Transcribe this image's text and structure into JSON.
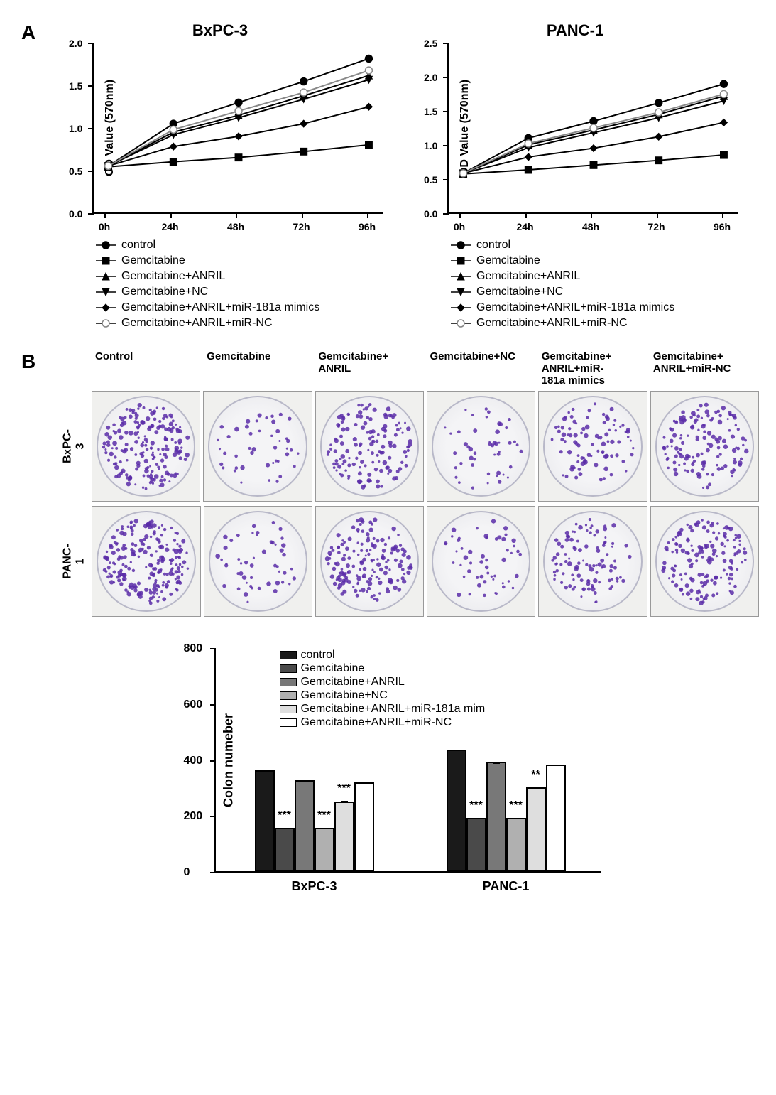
{
  "panelA": {
    "label": "A",
    "charts": [
      {
        "title": "BxPC-3",
        "ylabel": "OD Value (570nm)",
        "ymax": 2.0,
        "yticks": [
          0.0,
          0.5,
          1.0,
          1.5,
          2.0
        ],
        "xticks": [
          "0h",
          "24h",
          "48h",
          "72h",
          "96h"
        ],
        "series": [
          {
            "name": "control",
            "marker": "circle",
            "color": "#000000",
            "fill": "#000000",
            "y": [
              0.55,
              1.05,
              1.3,
              1.55,
              1.82
            ]
          },
          {
            "name": "Gemcitabine",
            "marker": "square",
            "color": "#000000",
            "fill": "#000000",
            "y": [
              0.54,
              0.6,
              0.65,
              0.72,
              0.8
            ]
          },
          {
            "name": "Gemcitabine+ANRIL",
            "marker": "triangle-up",
            "color": "#000000",
            "fill": "#000000",
            "y": [
              0.55,
              0.95,
              1.15,
              1.38,
              1.62
            ]
          },
          {
            "name": "Gemcitabine+NC",
            "marker": "triangle-down",
            "color": "#000000",
            "fill": "#000000",
            "y": [
              0.55,
              0.92,
              1.12,
              1.34,
              1.57
            ]
          },
          {
            "name": "Gemcitabine+ANRIL+miR-181a mimics",
            "marker": "diamond",
            "color": "#000000",
            "fill": "#000000",
            "y": [
              0.55,
              0.78,
              0.9,
              1.05,
              1.25
            ]
          },
          {
            "name": "Gemcitabine+ANRIL+miR-NC",
            "marker": "circle-open",
            "color": "#888888",
            "fill": "none",
            "y": [
              0.55,
              0.98,
              1.2,
              1.42,
              1.68
            ]
          }
        ]
      },
      {
        "title": "PANC-1",
        "ylabel": "OD Value (570nm)",
        "ymax": 2.5,
        "yticks": [
          0.0,
          0.5,
          1.0,
          1.5,
          2.0,
          2.5
        ],
        "xticks": [
          "0h",
          "24h",
          "48h",
          "72h",
          "96h"
        ],
        "series": [
          {
            "name": "control",
            "marker": "circle",
            "color": "#000000",
            "fill": "#000000",
            "y": [
              0.58,
              1.1,
              1.35,
              1.62,
              1.9
            ]
          },
          {
            "name": "Gemcitabine",
            "marker": "square",
            "color": "#000000",
            "fill": "#000000",
            "y": [
              0.57,
              0.63,
              0.7,
              0.77,
              0.85
            ]
          },
          {
            "name": "Gemcitabine+ANRIL",
            "marker": "triangle-up",
            "color": "#000000",
            "fill": "#000000",
            "y": [
              0.58,
              1.0,
              1.22,
              1.45,
              1.72
            ]
          },
          {
            "name": "Gemcitabine+NC",
            "marker": "triangle-down",
            "color": "#000000",
            "fill": "#000000",
            "y": [
              0.58,
              0.96,
              1.18,
              1.4,
              1.65
            ]
          },
          {
            "name": "Gemcitabine+ANRIL+miR-181a mimics",
            "marker": "diamond",
            "color": "#000000",
            "fill": "#000000",
            "y": [
              0.58,
              0.82,
              0.95,
              1.12,
              1.33
            ]
          },
          {
            "name": "Gemcitabine+ANRIL+miR-NC",
            "marker": "circle-open",
            "color": "#888888",
            "fill": "none",
            "y": [
              0.58,
              1.02,
              1.25,
              1.48,
              1.75
            ]
          }
        ]
      }
    ],
    "legend_items": [
      {
        "marker": "circle",
        "fill": "#000",
        "label": "control"
      },
      {
        "marker": "square",
        "fill": "#000",
        "label": "Gemcitabine"
      },
      {
        "marker": "triangle-up",
        "fill": "#000",
        "label": "Gemcitabine+ANRIL"
      },
      {
        "marker": "triangle-down",
        "fill": "#000",
        "label": "Gemcitabine+NC"
      },
      {
        "marker": "diamond",
        "fill": "#000",
        "label": "Gemcitabine+ANRIL+miR-181a mimics"
      },
      {
        "marker": "circle-open",
        "fill": "none",
        "label": "Gemcitabine+ANRIL+miR-NC"
      }
    ]
  },
  "panelB": {
    "label": "B",
    "col_headers": [
      "Control",
      "Gemcitabine",
      "Gemcitabine+\nANRIL",
      "Gemcitabine+NC",
      "Gemcitabine+\nANRIL+miR-\n181a mimics",
      "Gemcitabine+\nANRIL+miR-NC"
    ],
    "row_labels": [
      "BxPC-3",
      "PANC-1"
    ],
    "colony_density": [
      [
        380,
        90,
        280,
        95,
        180,
        270
      ],
      [
        420,
        100,
        320,
        105,
        210,
        310
      ]
    ],
    "bar_chart": {
      "ylabel": "Colon numeber",
      "ymax": 800,
      "yticks": [
        0,
        200,
        400,
        600,
        800
      ],
      "groups": [
        "BxPC-3",
        "PANC-1"
      ],
      "conditions": [
        {
          "label": "control",
          "color": "#1a1a1a",
          "pattern": "hatch"
        },
        {
          "label": "Gemcitabine",
          "color": "#4a4a4a",
          "pattern": "none"
        },
        {
          "label": "Gemcitabine+ANRIL",
          "color": "#787878",
          "pattern": "none"
        },
        {
          "label": "Gemcitabine+NC",
          "color": "#b0b0b0",
          "pattern": "none"
        },
        {
          "label": "Gemcitabine+ANRIL+miR-181a mim",
          "color": "#dedede",
          "pattern": "none"
        },
        {
          "label": "Gemcitabine+ANRIL+miR-NC",
          "color": "#ffffff",
          "pattern": "none"
        }
      ],
      "values": [
        [
          360,
          155,
          325,
          155,
          250,
          318
        ],
        [
          435,
          190,
          390,
          190,
          300,
          380
        ]
      ],
      "errors": [
        [
          6,
          5,
          4,
          5,
          6,
          6
        ],
        [
          5,
          5,
          4,
          5,
          6,
          7
        ]
      ],
      "sig": [
        [
          "",
          "***",
          "",
          "***",
          "***",
          ""
        ],
        [
          "",
          "***",
          "",
          "***",
          "**",
          ""
        ]
      ]
    }
  }
}
